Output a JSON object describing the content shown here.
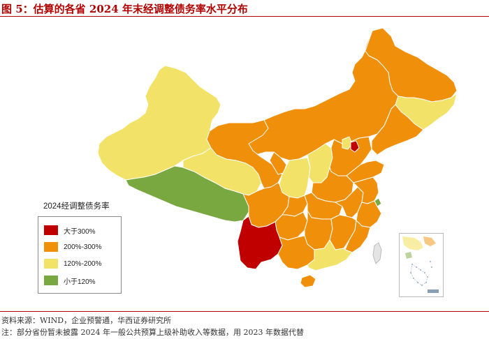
{
  "header": {
    "title": "图 5：估算的各省 2024 年末经调整债务率水平分布"
  },
  "legend": {
    "title": "2024经调整债务率",
    "items": [
      {
        "label": "大于300%",
        "color": "#c00000"
      },
      {
        "label": "200%-300%",
        "color": "#f0900a"
      },
      {
        "label": "120%-200%",
        "color": "#f2e268"
      },
      {
        "label": "小于120%",
        "color": "#78a83f"
      }
    ]
  },
  "footer": {
    "source": "资料来源：WIND，企业预警通，华西证券研究所",
    "note": "注：部分省份暂未披露 2024 年一般公共预算上级补助收入等数据，用 2023 年数据代替"
  },
  "regions": [
    {
      "name": "Heilongjiang",
      "category": "200%-300%"
    },
    {
      "name": "Jilin",
      "category": "120%-200%"
    },
    {
      "name": "Liaoning",
      "category": "200%-300%"
    },
    {
      "name": "Inner Mongolia",
      "category": "200%-300%"
    },
    {
      "name": "Xinjiang",
      "category": "120%-200%"
    },
    {
      "name": "Tibet",
      "category": "小于120%"
    },
    {
      "name": "Qinghai",
      "category": "120%-200%"
    },
    {
      "name": "Gansu",
      "category": "200%-300%"
    },
    {
      "name": "Ningxia",
      "category": "200%-300%"
    },
    {
      "name": "Shaanxi",
      "category": "120%-200%"
    },
    {
      "name": "Shanxi",
      "category": "120%-200%"
    },
    {
      "name": "Hebei",
      "category": "200%-300%"
    },
    {
      "name": "Beijing",
      "category": "120%-200%"
    },
    {
      "name": "Tianjin",
      "category": "大于300%"
    },
    {
      "name": "Shandong",
      "category": "200%-300%"
    },
    {
      "name": "Henan",
      "category": "200%-300%"
    },
    {
      "name": "Sichuan",
      "category": "200%-300%"
    },
    {
      "name": "Chongqing",
      "category": "200%-300%"
    },
    {
      "name": "Yunnan",
      "category": "大于300%"
    },
    {
      "name": "Guizhou",
      "category": "200%-300%"
    },
    {
      "name": "Guangxi",
      "category": "200%-300%"
    },
    {
      "name": "Guangdong",
      "category": "120%-200%"
    },
    {
      "name": "Hainan",
      "category": "200%-300%"
    },
    {
      "name": "Hunan",
      "category": "200%-300%"
    },
    {
      "name": "Hubei",
      "category": "200%-300%"
    },
    {
      "name": "Jiangxi",
      "category": "200%-300%"
    },
    {
      "name": "Fujian",
      "category": "200%-300%"
    },
    {
      "name": "Zhejiang",
      "category": "200%-300%"
    },
    {
      "name": "Anhui",
      "category": "200%-300%"
    },
    {
      "name": "Jiangsu",
      "category": "200%-300%"
    },
    {
      "name": "Shanghai",
      "category": "小于120%"
    },
    {
      "name": "Taiwan",
      "category": "none"
    }
  ]
}
